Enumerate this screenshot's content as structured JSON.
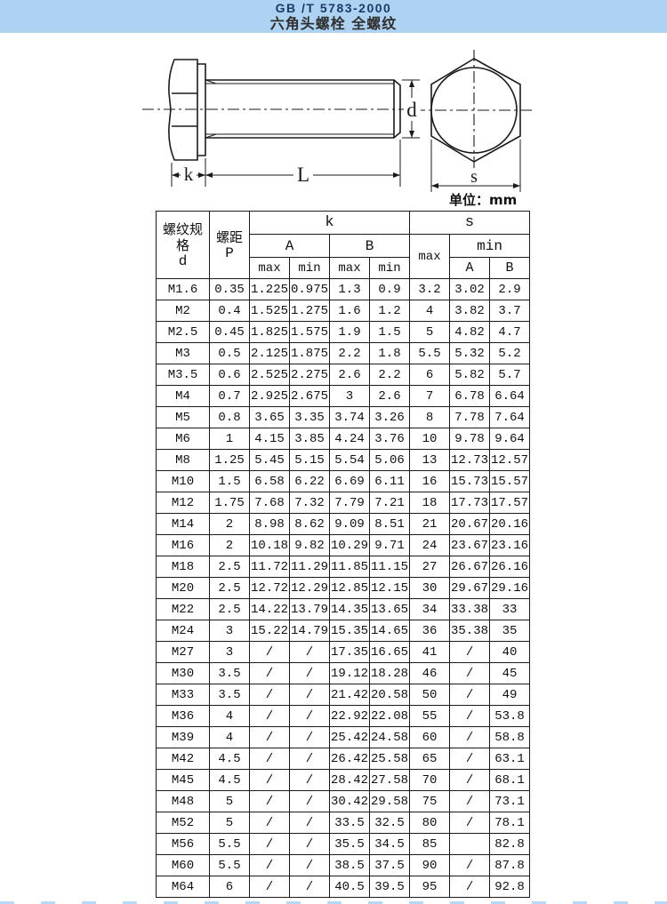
{
  "banner": {
    "standard": "GB /T 5783-2000",
    "title": "六角头螺栓 全螺纹"
  },
  "drawing": {
    "labels": {
      "k": "k",
      "L": "L",
      "d": "d",
      "s": "s"
    },
    "unit_label": "单位：mm"
  },
  "table": {
    "head": {
      "spec": [
        "螺纹规",
        "格",
        "d"
      ],
      "pitch": [
        "螺距",
        "P"
      ],
      "k": "k",
      "s": "s",
      "a": "A",
      "b": "B",
      "max": "max",
      "min": "min"
    },
    "rows": [
      [
        "M1.6",
        "0.35",
        "1.225",
        "0.975",
        "1.3",
        "0.9",
        "3.2",
        "3.02",
        "2.9"
      ],
      [
        "M2",
        "0.4",
        "1.525",
        "1.275",
        "1.6",
        "1.2",
        "4",
        "3.82",
        "3.7"
      ],
      [
        "M2.5",
        "0.45",
        "1.825",
        "1.575",
        "1.9",
        "1.5",
        "5",
        "4.82",
        "4.7"
      ],
      [
        "M3",
        "0.5",
        "2.125",
        "1.875",
        "2.2",
        "1.8",
        "5.5",
        "5.32",
        "5.2"
      ],
      [
        "M3.5",
        "0.6",
        "2.525",
        "2.275",
        "2.6",
        "2.2",
        "6",
        "5.82",
        "5.7"
      ],
      [
        "M4",
        "0.7",
        "2.925",
        "2.675",
        "3",
        "2.6",
        "7",
        "6.78",
        "6.64"
      ],
      [
        "M5",
        "0.8",
        "3.65",
        "3.35",
        "3.74",
        "3.26",
        "8",
        "7.78",
        "7.64"
      ],
      [
        "M6",
        "1",
        "4.15",
        "3.85",
        "4.24",
        "3.76",
        "10",
        "9.78",
        "9.64"
      ],
      [
        "M8",
        "1.25",
        "5.45",
        "5.15",
        "5.54",
        "5.06",
        "13",
        "12.73",
        "12.57"
      ],
      [
        "M10",
        "1.5",
        "6.58",
        "6.22",
        "6.69",
        "6.11",
        "16",
        "15.73",
        "15.57"
      ],
      [
        "M12",
        "1.75",
        "7.68",
        "7.32",
        "7.79",
        "7.21",
        "18",
        "17.73",
        "17.57"
      ],
      [
        "M14",
        "2",
        "8.98",
        "8.62",
        "9.09",
        "8.51",
        "21",
        "20.67",
        "20.16"
      ],
      [
        "M16",
        "2",
        "10.18",
        "9.82",
        "10.29",
        "9.71",
        "24",
        "23.67",
        "23.16"
      ],
      [
        "M18",
        "2.5",
        "11.72",
        "11.29",
        "11.85",
        "11.15",
        "27",
        "26.67",
        "26.16"
      ],
      [
        "M20",
        "2.5",
        "12.72",
        "12.29",
        "12.85",
        "12.15",
        "30",
        "29.67",
        "29.16"
      ],
      [
        "M22",
        "2.5",
        "14.22",
        "13.79",
        "14.35",
        "13.65",
        "34",
        "33.38",
        "33"
      ],
      [
        "M24",
        "3",
        "15.22",
        "14.79",
        "15.35",
        "14.65",
        "36",
        "35.38",
        "35"
      ],
      [
        "M27",
        "3",
        "/",
        "/",
        "17.35",
        "16.65",
        "41",
        "/",
        "40"
      ],
      [
        "M30",
        "3.5",
        "/",
        "/",
        "19.12",
        "18.28",
        "46",
        "/",
        "45"
      ],
      [
        "M33",
        "3.5",
        "/",
        "/",
        "21.42",
        "20.58",
        "50",
        "/",
        "49"
      ],
      [
        "M36",
        "4",
        "/",
        "/",
        "22.92",
        "22.08",
        "55",
        "/",
        "53.8"
      ],
      [
        "M39",
        "4",
        "/",
        "/",
        "25.42",
        "24.58",
        "60",
        "/",
        "58.8"
      ],
      [
        "M42",
        "4.5",
        "/",
        "/",
        "26.42",
        "25.58",
        "65",
        "/",
        "63.1"
      ],
      [
        "M45",
        "4.5",
        "/",
        "/",
        "28.42",
        "27.58",
        "70",
        "/",
        "68.1"
      ],
      [
        "M48",
        "5",
        "/",
        "/",
        "30.42",
        "29.58",
        "75",
        "/",
        "73.1"
      ],
      [
        "M52",
        "5",
        "/",
        "/",
        "33.5",
        "32.5",
        "80",
        "/",
        "78.1"
      ],
      [
        "M56",
        "5.5",
        "/",
        "/",
        "35.5",
        "34.5",
        "85",
        "",
        "82.8"
      ],
      [
        "M60",
        "5.5",
        "/",
        "/",
        "38.5",
        "37.5",
        "90",
        "/",
        "87.8"
      ],
      [
        "M64",
        "6",
        "/",
        "/",
        "40.5",
        "39.5",
        "95",
        "/",
        "92.8"
      ]
    ]
  }
}
